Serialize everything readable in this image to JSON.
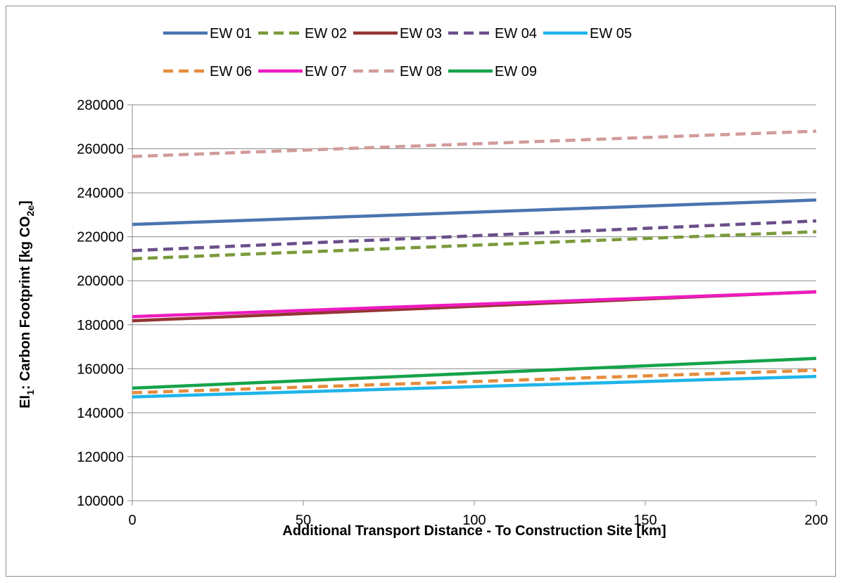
{
  "chart_data": {
    "type": "line",
    "title": "",
    "xlabel": "Additional Transport Distance - To Construction Site [km]",
    "ylabel": {
      "prefix": "EI",
      "prefix_sub": "1",
      "main": ": Carbon Footprint [kg CO",
      "unit_sub": "2e",
      "suffix": "]"
    },
    "x_ticks": [
      "0",
      "50",
      "100",
      "150",
      "200"
    ],
    "y_ticks": [
      "100000",
      "120000",
      "140000",
      "160000",
      "180000",
      "200000",
      "220000",
      "240000",
      "260000",
      "280000"
    ],
    "xlim": [
      0,
      200
    ],
    "ylim": [
      100000,
      280000
    ],
    "grid": "horizontal",
    "legend_position": "top",
    "x": [
      0,
      200
    ],
    "series": [
      {
        "name": "EW 01",
        "values": [
          225600,
          236700
        ],
        "color": "#4a74b0",
        "dash": "solid"
      },
      {
        "name": "EW 02",
        "values": [
          210000,
          222300
        ],
        "color": "#7a9a3a",
        "dash": "dashed"
      },
      {
        "name": "EW 03",
        "values": [
          181800,
          195000
        ],
        "color": "#943634",
        "dash": "solid"
      },
      {
        "name": "EW 04",
        "values": [
          213700,
          227200
        ],
        "color": "#6a4f8a",
        "dash": "dashed"
      },
      {
        "name": "EW 05",
        "values": [
          147200,
          156500
        ],
        "color": "#1fb4ea",
        "dash": "solid"
      },
      {
        "name": "EW 06",
        "values": [
          149100,
          159300
        ],
        "color": "#e58c3d",
        "dash": "dashed"
      },
      {
        "name": "EW 07",
        "values": [
          183700,
          194900
        ],
        "color": "#ee1bbf",
        "dash": "solid"
      },
      {
        "name": "EW 08",
        "values": [
          256500,
          268000
        ],
        "color": "#d19b9a",
        "dash": "dashed"
      },
      {
        "name": "EW 09",
        "values": [
          151200,
          164700
        ],
        "color": "#16a34a",
        "dash": "solid"
      }
    ]
  }
}
